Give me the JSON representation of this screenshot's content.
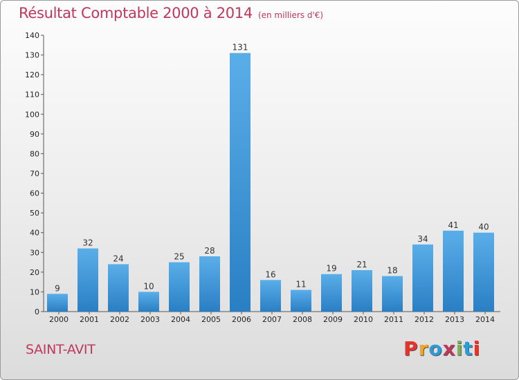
{
  "header": {
    "title": "Résultat Comptable 2000 à 2014",
    "subtitle": "(en milliers d'€)"
  },
  "footer": {
    "commune": "SAINT-AVIT",
    "logo_letters": [
      "P",
      "r",
      "o",
      "x",
      "i",
      "t",
      "i"
    ]
  },
  "colors": {
    "title": "#c0375b",
    "bar_top": "#5aaee8",
    "bar_bottom": "#2a7fc4",
    "logo": [
      "#e8332a",
      "#f5a623",
      "#2e9bd6",
      "#c0375b",
      "#7ab648",
      "#2e9bd6",
      "#e8332a"
    ]
  },
  "chart_data": {
    "type": "bar",
    "categories": [
      "2000",
      "2001",
      "2002",
      "2003",
      "2004",
      "2005",
      "2006",
      "2007",
      "2008",
      "2009",
      "2010",
      "2011",
      "2012",
      "2013",
      "2014"
    ],
    "values": [
      9,
      32,
      24,
      10,
      25,
      28,
      131,
      16,
      11,
      19,
      21,
      18,
      34,
      41,
      40
    ],
    "yticks": [
      0,
      10,
      20,
      30,
      40,
      50,
      60,
      70,
      80,
      90,
      100,
      110,
      120,
      130,
      140
    ],
    "ylim": [
      0,
      140
    ],
    "title": "Résultat Comptable 2000 à 2014",
    "xlabel": "",
    "ylabel": "",
    "grid": false,
    "data_labels": true
  }
}
